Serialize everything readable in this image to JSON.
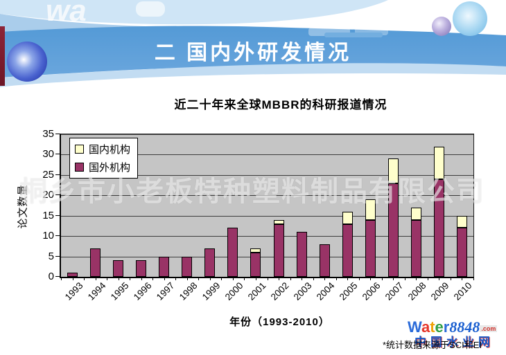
{
  "header": {
    "title": "二 国内外研发情况",
    "top_left_watermark": "wa"
  },
  "chart_data": {
    "type": "bar",
    "stacked": true,
    "title": "近二十年来全球MBBR的科研报道情况",
    "xlabel": "年份（1993-2010）",
    "ylabel": "论文数量",
    "categories": [
      "1993",
      "1994",
      "1995",
      "1996",
      "1997",
      "1998",
      "1999",
      "2000",
      "2001",
      "2002",
      "2003",
      "2004",
      "2005",
      "2006",
      "2007",
      "2008",
      "2009",
      "2010"
    ],
    "series": [
      {
        "name": "国内机构",
        "color": "#ffffcc",
        "values": [
          0,
          0,
          0,
          0,
          0,
          0,
          0,
          0,
          1,
          1,
          0,
          0,
          3,
          5,
          6,
          3,
          8,
          3
        ]
      },
      {
        "name": "国外机构",
        "color": "#993366",
        "values": [
          1,
          7,
          4,
          4,
          5,
          5,
          7,
          12,
          6,
          13,
          11,
          8,
          13,
          14,
          23,
          14,
          24,
          12
        ]
      }
    ],
    "ylim": [
      0,
      35
    ],
    "ytick_step": 5,
    "grid": true,
    "legend_position": "top-left",
    "plot_background": "#c5c5c5"
  },
  "watermarks": {
    "chart_overlay": "桐乡市小老板特种塑料制品有限公司"
  },
  "footer": {
    "note": "*统计数据来源于SCI和EI",
    "logo": {
      "letters": [
        {
          "ch": "W",
          "color": "#2b6bd9"
        },
        {
          "ch": "a",
          "color": "#e6352b"
        },
        {
          "ch": "t",
          "color": "#f0a30a"
        },
        {
          "ch": "e",
          "color": "#2f9e44"
        },
        {
          "ch": "r",
          "color": "#2b6bd9"
        }
      ],
      "suffix": "8848",
      "suffix_color": "#1a5fd0",
      "dotcom": ".com",
      "tagline": "中国水业网"
    }
  }
}
